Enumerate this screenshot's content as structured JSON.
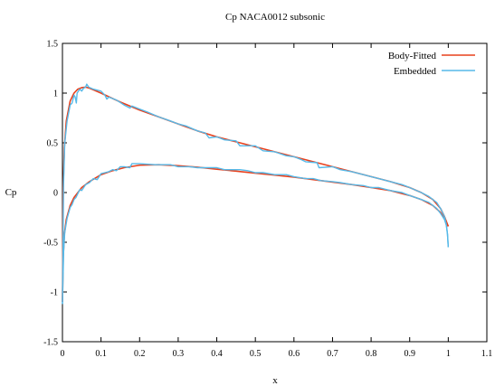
{
  "chart_data": {
    "type": "line",
    "title": "Cp NACA0012 subsonic",
    "xlabel": "x",
    "ylabel": "Cp",
    "xlim": [
      0,
      1.1
    ],
    "ylim": [
      -1.5,
      1.5
    ],
    "x_ticks": [
      "0",
      "0.1",
      "0.2",
      "0.3",
      "0.4",
      "0.5",
      "0.6",
      "0.7",
      "0.8",
      "0.9",
      "1",
      "1.1"
    ],
    "y_ticks": [
      "1.5",
      "1",
      "0.5",
      "0",
      "-0.5",
      "-1",
      "-1.5"
    ],
    "x_tick_values": [
      0,
      0.1,
      0.2,
      0.3,
      0.4,
      0.5,
      0.6,
      0.7,
      0.8,
      0.9,
      1.0,
      1.1
    ],
    "y_tick_values": [
      1.5,
      1,
      0.5,
      0,
      -0.5,
      -1,
      -1.5
    ],
    "grid": false,
    "legend_position": "top-right",
    "series": [
      {
        "name": "Body-Fitted",
        "color": "#e8401c",
        "curves": [
          [
            [
              0,
              -1.1
            ],
            [
              0.002,
              -0.65
            ],
            [
              0.005,
              -0.42
            ],
            [
              0.01,
              -0.27
            ],
            [
              0.02,
              -0.13
            ],
            [
              0.03,
              -0.05
            ],
            [
              0.05,
              0.05
            ],
            [
              0.07,
              0.11
            ],
            [
              0.1,
              0.18
            ],
            [
              0.13,
              0.22
            ],
            [
              0.16,
              0.25
            ],
            [
              0.2,
              0.275
            ],
            [
              0.25,
              0.28
            ],
            [
              0.3,
              0.27
            ],
            [
              0.35,
              0.255
            ],
            [
              0.4,
              0.235
            ],
            [
              0.45,
              0.215
            ],
            [
              0.5,
              0.195
            ],
            [
              0.55,
              0.175
            ],
            [
              0.6,
              0.155
            ],
            [
              0.65,
              0.13
            ],
            [
              0.7,
              0.105
            ],
            [
              0.75,
              0.08
            ],
            [
              0.8,
              0.05
            ],
            [
              0.85,
              0.02
            ],
            [
              0.9,
              -0.03
            ],
            [
              0.93,
              -0.07
            ],
            [
              0.96,
              -0.13
            ],
            [
              0.98,
              -0.2
            ],
            [
              0.99,
              -0.26
            ],
            [
              1.0,
              -0.34
            ]
          ],
          [
            [
              0,
              -1.1
            ],
            [
              0.002,
              0.05
            ],
            [
              0.005,
              0.45
            ],
            [
              0.01,
              0.72
            ],
            [
              0.02,
              0.92
            ],
            [
              0.03,
              1.0
            ],
            [
              0.04,
              1.04
            ],
            [
              0.05,
              1.055
            ],
            [
              0.06,
              1.06
            ],
            [
              0.07,
              1.05
            ],
            [
              0.1,
              1.0
            ],
            [
              0.15,
              0.91
            ],
            [
              0.2,
              0.83
            ],
            [
              0.25,
              0.76
            ],
            [
              0.3,
              0.69
            ],
            [
              0.35,
              0.62
            ],
            [
              0.4,
              0.56
            ],
            [
              0.45,
              0.51
            ],
            [
              0.5,
              0.46
            ],
            [
              0.55,
              0.41
            ],
            [
              0.6,
              0.36
            ],
            [
              0.65,
              0.31
            ],
            [
              0.7,
              0.26
            ],
            [
              0.75,
              0.21
            ],
            [
              0.8,
              0.16
            ],
            [
              0.85,
              0.11
            ],
            [
              0.9,
              0.05
            ],
            [
              0.93,
              0.0
            ],
            [
              0.96,
              -0.07
            ],
            [
              0.98,
              -0.16
            ],
            [
              0.99,
              -0.24
            ],
            [
              1.0,
              -0.34
            ]
          ]
        ]
      },
      {
        "name": "Embedded",
        "color": "#56b9e8",
        "curves": [
          [
            [
              0,
              -1.12
            ],
            [
              0.003,
              -0.6
            ],
            [
              0.006,
              -0.4
            ],
            [
              0.012,
              -0.26
            ],
            [
              0.02,
              -0.15
            ],
            [
              0.025,
              -0.12
            ],
            [
              0.03,
              -0.07
            ],
            [
              0.035,
              -0.05
            ],
            [
              0.045,
              0.03
            ],
            [
              0.05,
              0.02
            ],
            [
              0.06,
              0.08
            ],
            [
              0.07,
              0.1
            ],
            [
              0.08,
              0.14
            ],
            [
              0.09,
              0.13
            ],
            [
              0.1,
              0.19
            ],
            [
              0.11,
              0.2
            ],
            [
              0.12,
              0.21
            ],
            [
              0.13,
              0.23
            ],
            [
              0.14,
              0.22
            ],
            [
              0.15,
              0.26
            ],
            [
              0.16,
              0.26
            ],
            [
              0.175,
              0.25
            ],
            [
              0.18,
              0.29
            ],
            [
              0.2,
              0.29
            ],
            [
              0.24,
              0.28
            ],
            [
              0.28,
              0.28
            ],
            [
              0.3,
              0.26
            ],
            [
              0.33,
              0.26
            ],
            [
              0.35,
              0.25
            ],
            [
              0.36,
              0.25
            ],
            [
              0.4,
              0.25
            ],
            [
              0.42,
              0.23
            ],
            [
              0.46,
              0.23
            ],
            [
              0.48,
              0.22
            ],
            [
              0.5,
              0.2
            ],
            [
              0.52,
              0.2
            ],
            [
              0.55,
              0.18
            ],
            [
              0.58,
              0.18
            ],
            [
              0.6,
              0.16
            ],
            [
              0.63,
              0.14
            ],
            [
              0.65,
              0.14
            ],
            [
              0.67,
              0.12
            ],
            [
              0.7,
              0.11
            ],
            [
              0.72,
              0.1
            ],
            [
              0.75,
              0.08
            ],
            [
              0.78,
              0.07
            ],
            [
              0.8,
              0.05
            ],
            [
              0.82,
              0.05
            ],
            [
              0.85,
              0.02
            ],
            [
              0.88,
              0.0
            ],
            [
              0.9,
              -0.03
            ],
            [
              0.93,
              -0.07
            ],
            [
              0.95,
              -0.1
            ],
            [
              0.97,
              -0.16
            ],
            [
              0.98,
              -0.21
            ],
            [
              0.99,
              -0.27
            ],
            [
              0.995,
              -0.33
            ],
            [
              0.998,
              -0.42
            ],
            [
              1.0,
              -0.55
            ]
          ],
          [
            [
              0,
              -1.12
            ],
            [
              0.003,
              0.1
            ],
            [
              0.006,
              0.5
            ],
            [
              0.012,
              0.72
            ],
            [
              0.02,
              0.88
            ],
            [
              0.025,
              0.9
            ],
            [
              0.03,
              0.98
            ],
            [
              0.033,
              0.96
            ],
            [
              0.036,
              0.9
            ],
            [
              0.038,
              1.0
            ],
            [
              0.045,
              1.04
            ],
            [
              0.05,
              1.02
            ],
            [
              0.055,
              1.05
            ],
            [
              0.06,
              1.06
            ],
            [
              0.063,
              1.09
            ],
            [
              0.068,
              1.06
            ],
            [
              0.08,
              1.04
            ],
            [
              0.09,
              1.03
            ],
            [
              0.1,
              1.02
            ],
            [
              0.11,
              0.98
            ],
            [
              0.115,
              0.94
            ],
            [
              0.12,
              0.96
            ],
            [
              0.14,
              0.93
            ],
            [
              0.16,
              0.88
            ],
            [
              0.175,
              0.85
            ],
            [
              0.18,
              0.87
            ],
            [
              0.2,
              0.84
            ],
            [
              0.22,
              0.81
            ],
            [
              0.25,
              0.76
            ],
            [
              0.28,
              0.72
            ],
            [
              0.3,
              0.69
            ],
            [
              0.32,
              0.67
            ],
            [
              0.35,
              0.62
            ],
            [
              0.37,
              0.6
            ],
            [
              0.38,
              0.55
            ],
            [
              0.4,
              0.56
            ],
            [
              0.42,
              0.53
            ],
            [
              0.45,
              0.52
            ],
            [
              0.46,
              0.47
            ],
            [
              0.5,
              0.47
            ],
            [
              0.52,
              0.42
            ],
            [
              0.55,
              0.41
            ],
            [
              0.58,
              0.37
            ],
            [
              0.6,
              0.36
            ],
            [
              0.62,
              0.33
            ],
            [
              0.63,
              0.31
            ],
            [
              0.66,
              0.3
            ],
            [
              0.665,
              0.25
            ],
            [
              0.7,
              0.26
            ],
            [
              0.72,
              0.23
            ],
            [
              0.75,
              0.21
            ],
            [
              0.78,
              0.18
            ],
            [
              0.8,
              0.16
            ],
            [
              0.82,
              0.14
            ],
            [
              0.85,
              0.11
            ],
            [
              0.88,
              0.08
            ],
            [
              0.9,
              0.05
            ],
            [
              0.93,
              0.0
            ],
            [
              0.95,
              -0.04
            ],
            [
              0.97,
              -0.1
            ],
            [
              0.98,
              -0.16
            ],
            [
              0.99,
              -0.24
            ],
            [
              0.995,
              -0.32
            ],
            [
              0.998,
              -0.42
            ],
            [
              1.0,
              -0.55
            ]
          ]
        ]
      }
    ]
  }
}
